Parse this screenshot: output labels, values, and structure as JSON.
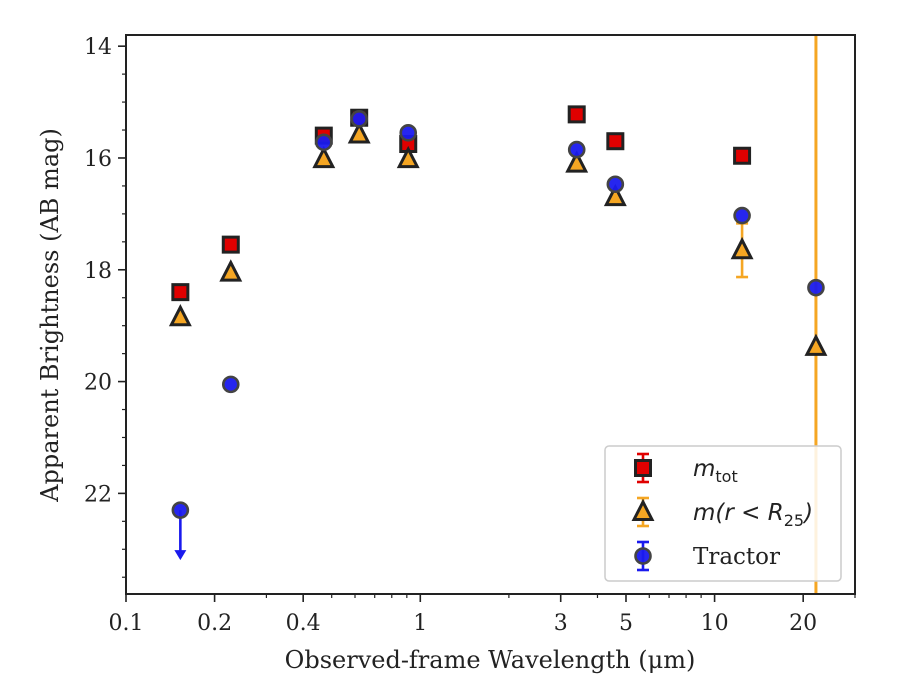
{
  "chart_data": {
    "type": "scatter",
    "xlabel": "Observed-frame Wavelength (μm)",
    "ylabel": "Apparent Brightness (AB mag)",
    "xscale": "log",
    "xlim": [
      0.1,
      30
    ],
    "ylim": [
      23.8,
      13.8
    ],
    "y_inverted": true,
    "x_ticks": [
      0.1,
      0.2,
      0.4,
      1,
      3,
      5,
      10,
      20
    ],
    "x_tick_labels": [
      "0.1",
      "0.2",
      "0.4",
      "1",
      "3",
      "5",
      "10",
      "20"
    ],
    "y_ticks": [
      14,
      16,
      18,
      20,
      22
    ],
    "y_tick_labels": [
      "14",
      "16",
      "18",
      "20",
      "22"
    ],
    "legend_position": "lower-right",
    "series": [
      {
        "name": "m_tot",
        "legend_main": "m",
        "legend_sub": "tot",
        "marker": "square",
        "color": "#e00000",
        "edge_color": "#222222",
        "points": [
          {
            "x": 0.153,
            "y": 18.4
          },
          {
            "x": 0.227,
            "y": 17.55
          },
          {
            "x": 0.47,
            "y": 15.6
          },
          {
            "x": 0.62,
            "y": 15.28
          },
          {
            "x": 0.91,
            "y": 15.75
          },
          {
            "x": 3.4,
            "y": 15.22
          },
          {
            "x": 4.6,
            "y": 15.7
          },
          {
            "x": 12.4,
            "y": 15.96
          }
        ]
      },
      {
        "name": "m(r < R25)",
        "legend_main": "m(r < R",
        "legend_sub": "25",
        "legend_tail": ")",
        "marker": "triangle",
        "color": "#f5a623",
        "edge_color": "#222222",
        "points": [
          {
            "x": 0.153,
            "y": 18.85
          },
          {
            "x": 0.227,
            "y": 18.05
          },
          {
            "x": 0.47,
            "y": 16.02
          },
          {
            "x": 0.62,
            "y": 15.58
          },
          {
            "x": 0.91,
            "y": 16.02
          },
          {
            "x": 3.4,
            "y": 16.1
          },
          {
            "x": 4.6,
            "y": 16.7
          },
          {
            "x": 12.4,
            "y": 17.65,
            "err": 0.48
          },
          {
            "x": 22.1,
            "y": 19.38,
            "err_full_axis": true
          }
        ]
      },
      {
        "name": "Tractor",
        "marker": "circle",
        "color": "#1a1aee",
        "edge_color": "#444444",
        "points": [
          {
            "x": 0.153,
            "y": 22.3,
            "upper_limit": true
          },
          {
            "x": 0.227,
            "y": 20.05
          },
          {
            "x": 0.47,
            "y": 15.72
          },
          {
            "x": 0.62,
            "y": 15.3
          },
          {
            "x": 0.91,
            "y": 15.55
          },
          {
            "x": 3.4,
            "y": 15.85
          },
          {
            "x": 4.6,
            "y": 16.47
          },
          {
            "x": 12.4,
            "y": 17.03
          },
          {
            "x": 22.1,
            "y": 18.32
          }
        ]
      }
    ]
  }
}
